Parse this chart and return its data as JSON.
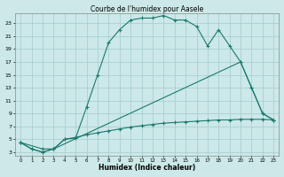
{
  "title": "Courbe de l'humidex pour Aasele",
  "xlabel": "Humidex (Indice chaleur)",
  "background_color": "#cce8e8",
  "grid_color": "#aacfcf",
  "line_color": "#1a7a6e",
  "xlim": [
    -0.5,
    23.5
  ],
  "ylim": [
    2.5,
    24.5
  ],
  "x_ticks": [
    0,
    1,
    2,
    3,
    4,
    5,
    6,
    7,
    8,
    9,
    10,
    11,
    12,
    13,
    14,
    15,
    16,
    17,
    18,
    19,
    20,
    21,
    22,
    23
  ],
  "y_ticks": [
    3,
    5,
    7,
    9,
    11,
    13,
    15,
    17,
    19,
    21,
    23
  ],
  "line1_x": [
    0,
    1,
    2,
    3,
    4,
    5,
    6,
    7,
    8,
    9,
    10,
    11,
    12,
    13,
    14,
    15,
    16,
    17,
    18,
    19,
    20,
    21,
    22,
    23
  ],
  "line1_y": [
    4.5,
    3.5,
    3.0,
    3.5,
    5.0,
    5.2,
    10.0,
    15.0,
    20.0,
    22.0,
    23.5,
    23.8,
    23.8,
    24.2,
    23.5,
    23.5,
    22.5,
    19.5,
    22.0,
    19.5,
    17.0,
    13.0,
    9.0,
    8.0
  ],
  "line2_x": [
    0,
    2,
    3,
    20,
    21,
    22,
    23
  ],
  "line2_y": [
    4.5,
    3.5,
    3.5,
    17.0,
    13.0,
    9.0,
    8.0
  ],
  "line3_x": [
    0,
    1,
    2,
    3,
    4,
    5,
    6,
    7,
    8,
    9,
    10,
    11,
    12,
    13,
    14,
    15,
    16,
    17,
    18,
    19,
    20,
    21,
    22,
    23
  ],
  "line3_y": [
    4.5,
    3.5,
    3.0,
    3.5,
    5.0,
    5.3,
    5.7,
    6.0,
    6.3,
    6.6,
    6.9,
    7.1,
    7.3,
    7.5,
    7.6,
    7.7,
    7.8,
    7.9,
    8.0,
    8.0,
    8.1,
    8.1,
    8.1,
    8.0
  ]
}
